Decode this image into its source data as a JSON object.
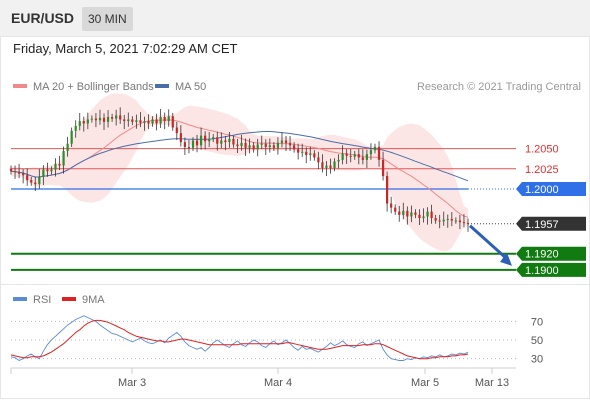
{
  "header": {
    "pair": "EUR/USD",
    "timeframe": "30 MIN"
  },
  "date_line": "Friday, March 5, 2021 7:02:29 AM CET",
  "colors": {
    "up_candle": "#2e8b2e",
    "down_candle": "#c62828",
    "ma20": "#f08a8a",
    "bollinger_fill": "#fbe0e0",
    "ma50": "#4a6ea9",
    "resistance": "#e05757",
    "pivot": "#2f6fe8",
    "support": "#117a11",
    "last_price": "#333333",
    "rsi": "#5b8bd6",
    "rsi_ma": "#dd2222"
  },
  "chart_data": [
    {
      "type": "candlestick",
      "instrument": "EUR/USD",
      "legend": [
        {
          "label": "MA 20 + Bollinger Bands",
          "color": "#f08a8a"
        },
        {
          "label": "MA 50",
          "color": "#4a6ea9"
        }
      ],
      "attribution": "Research © 2021 Trading Central",
      "x_ticks": [
        "Mar 3",
        "Mar 4",
        "Mar 5",
        "Mar 13"
      ],
      "ylim": [
        1.1885,
        1.2115
      ],
      "close_series": [
        1.2022,
        1.2021,
        1.2019,
        1.2017,
        1.2011,
        1.2008,
        1.2006,
        1.2015,
        1.2024,
        1.2022,
        1.2024,
        1.2031,
        1.2029,
        1.2047,
        1.2056,
        1.2072,
        1.2078,
        1.2084,
        1.2081,
        1.2086,
        1.2087,
        1.2085,
        1.2088,
        1.2083,
        1.2089,
        1.2087,
        1.2091,
        1.2086,
        1.2084,
        1.2086,
        1.2083,
        1.2085,
        1.2082,
        1.2084,
        1.2081,
        1.2086,
        1.2081,
        1.2089,
        1.2084,
        1.209,
        1.2076,
        1.2069,
        1.2058,
        1.2052,
        1.2051,
        1.206,
        1.2054,
        1.2066,
        1.2059,
        1.2062,
        1.2064,
        1.2056,
        1.206,
        1.2058,
        1.2062,
        1.2055,
        1.2053,
        1.2057,
        1.2051,
        1.2054,
        1.2049,
        1.2055,
        1.2056,
        1.2052,
        1.2054,
        1.2051,
        1.2057,
        1.206,
        1.2057,
        1.2054,
        1.2049,
        1.2045,
        1.2046,
        1.2042,
        1.2044,
        1.2039,
        1.2033,
        1.2026,
        1.2029,
        1.2026,
        1.2034,
        1.2036,
        1.2044,
        1.2041,
        1.204,
        1.2043,
        1.2039,
        1.2036,
        1.2043,
        1.2048,
        1.2052,
        1.2036,
        1.2016,
        1.1982,
        1.1977,
        1.1972,
        1.1968,
        1.1973,
        1.1966,
        1.1971,
        1.1968,
        1.1964,
        1.1966,
        1.1972,
        1.1964,
        1.1961,
        1.196,
        1.1962,
        1.1963,
        1.1961,
        1.1961,
        1.1959,
        1.1958,
        1.1957
      ],
      "price_labels": [
        {
          "text": "1.2050",
          "value": 1.205,
          "kind": "resistance"
        },
        {
          "text": "1.2025",
          "value": 1.2025,
          "kind": "resistance"
        },
        {
          "text": "1.2000",
          "value": 1.2,
          "kind": "pivot"
        },
        {
          "text": "1.1957",
          "value": 1.1957,
          "kind": "last"
        },
        {
          "text": "1.1920",
          "value": 1.192,
          "kind": "support"
        },
        {
          "text": "1.1900",
          "value": 1.19,
          "kind": "support"
        }
      ]
    },
    {
      "type": "line",
      "name": "RSI panel",
      "legend": [
        {
          "label": "RSI",
          "color": "#5b8bd6"
        },
        {
          "label": "9MA",
          "color": "#dd2222"
        }
      ],
      "ylim": [
        20,
        80
      ],
      "y_ticks": [
        "70",
        "50",
        "30"
      ],
      "y_tick_values": [
        70,
        50,
        30
      ],
      "series": [
        {
          "name": "RSI",
          "values": [
            32,
            31,
            28,
            30,
            33,
            35,
            32,
            30,
            38,
            45,
            50,
            54,
            58,
            62,
            66,
            69,
            72,
            74,
            76,
            74,
            72,
            70,
            66,
            63,
            60,
            57,
            56,
            54,
            52,
            50,
            48,
            50,
            52,
            49,
            47,
            46,
            48,
            50,
            47,
            52,
            55,
            58,
            54,
            48,
            44,
            42,
            40,
            42,
            38,
            42,
            47,
            50,
            47,
            44,
            42,
            46,
            49,
            45,
            43,
            47,
            50,
            48,
            44,
            42,
            46,
            49,
            45,
            47,
            50,
            46,
            42,
            39,
            43,
            40,
            41,
            39,
            37,
            40,
            43,
            47,
            44,
            46,
            49,
            45,
            43,
            42,
            46,
            48,
            44,
            46,
            48,
            50,
            40,
            34,
            30,
            29,
            28,
            28,
            30,
            29,
            31,
            30,
            32,
            31,
            33,
            32,
            34,
            32,
            33,
            35,
            34,
            36,
            35,
            37
          ]
        },
        {
          "name": "9MA",
          "values": [
            34,
            33,
            32,
            31,
            31,
            32,
            32,
            32,
            33,
            35,
            37,
            40,
            43,
            46,
            50,
            54,
            58,
            61,
            65,
            68,
            70,
            71,
            71,
            70,
            69,
            67,
            65,
            63,
            61,
            58,
            56,
            54,
            53,
            52,
            51,
            50,
            49,
            49,
            48,
            48,
            49,
            50,
            51,
            51,
            50,
            49,
            48,
            47,
            46,
            45,
            45,
            45,
            45,
            45,
            45,
            45,
            45,
            46,
            46,
            46,
            46,
            46,
            46,
            46,
            46,
            46,
            46,
            46,
            47,
            47,
            46,
            45,
            44,
            43,
            42,
            41,
            40,
            40,
            40,
            41,
            42,
            43,
            44,
            44,
            44,
            44,
            44,
            45,
            45,
            45,
            46,
            46,
            45,
            43,
            41,
            39,
            37,
            35,
            33,
            32,
            31,
            30,
            30,
            30,
            31,
            31,
            32,
            32,
            32,
            33,
            33,
            34,
            34,
            35
          ]
        }
      ]
    }
  ]
}
